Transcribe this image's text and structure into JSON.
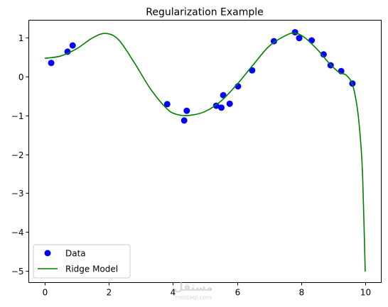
{
  "chart_data": {
    "type": "scatter",
    "title": "Regularization Example",
    "xlabel": "",
    "ylabel": "",
    "xlim": [
      -0.5,
      10.5
    ],
    "ylim": [
      -5.3,
      1.45
    ],
    "xticks": [
      0,
      2,
      4,
      6,
      8,
      10
    ],
    "yticks": [
      1,
      0,
      -1,
      -2,
      -3,
      -4,
      -5
    ],
    "xtick_labels": [
      "0",
      "2",
      "4",
      "6",
      "8",
      "10"
    ],
    "ytick_labels": [
      "1",
      "0",
      "−1",
      "−2",
      "−3",
      "−4",
      "−5"
    ],
    "grid": false,
    "legend_position": "lower-left",
    "series": [
      {
        "name": "Data",
        "kind": "scatter",
        "color": "#0000ff",
        "x": [
          0.2,
          0.71,
          0.87,
          3.82,
          4.35,
          4.43,
          5.35,
          5.51,
          5.57,
          5.77,
          6.03,
          6.47,
          7.15,
          7.81,
          7.94,
          8.33,
          8.7,
          8.92,
          9.25,
          9.6
        ],
        "y": [
          0.35,
          0.64,
          0.8,
          -0.71,
          -1.13,
          -0.88,
          -0.75,
          -0.8,
          -0.48,
          -0.7,
          -0.25,
          0.16,
          0.91,
          1.14,
          0.99,
          0.93,
          0.57,
          0.29,
          0.14,
          -0.18
        ]
      },
      {
        "name": "Ridge Model",
        "kind": "line",
        "color": "#008000",
        "x": [
          0,
          0.5,
          1.0,
          1.5,
          1.9,
          2.3,
          2.8,
          3.3,
          3.8,
          4.1,
          4.5,
          5.0,
          5.5,
          6.0,
          6.5,
          7.0,
          7.5,
          7.8,
          8.1,
          8.5,
          8.9,
          9.2,
          9.4,
          9.6,
          9.75,
          9.85,
          9.92,
          10.0
        ],
        "y": [
          0.47,
          0.53,
          0.72,
          1.0,
          1.11,
          0.95,
          0.35,
          -0.32,
          -0.82,
          -0.97,
          -1.0,
          -0.9,
          -0.63,
          -0.2,
          0.3,
          0.78,
          1.05,
          1.12,
          1.01,
          0.7,
          0.32,
          0.1,
          0.04,
          -0.2,
          -0.8,
          -1.6,
          -2.6,
          -5.02
        ]
      }
    ]
  },
  "watermark": {
    "logo_text": "مستقل",
    "site_text": "mostaql.com"
  }
}
